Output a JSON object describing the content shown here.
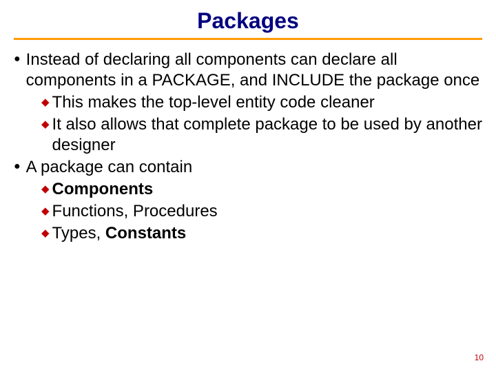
{
  "title": {
    "text": "Packages",
    "color": "#000080",
    "fontsize": 32
  },
  "hr_color": "#ff9900",
  "body_fontsize": 24,
  "body_color": "#000000",
  "l1_bullet": {
    "glyph": "●",
    "color": "#000000",
    "size": 16
  },
  "l2_bullet": {
    "glyph": "◆",
    "color": "#c00000",
    "size": 15
  },
  "items": {
    "i0": "Instead of declaring all components can declare all components in a PACKAGE, and INCLUDE the package once",
    "i0a": "This makes the top-level entity code cleaner",
    "i0b": "It also allows that complete package to be used by another designer",
    "i1": "A package can contain",
    "i1a": "Components",
    "i1b": "Functions, Procedures",
    "i1c_a": "Types,",
    "i1c_b": " Constants"
  },
  "page_number": {
    "text": "10",
    "color": "#c00000",
    "fontsize": 12
  }
}
